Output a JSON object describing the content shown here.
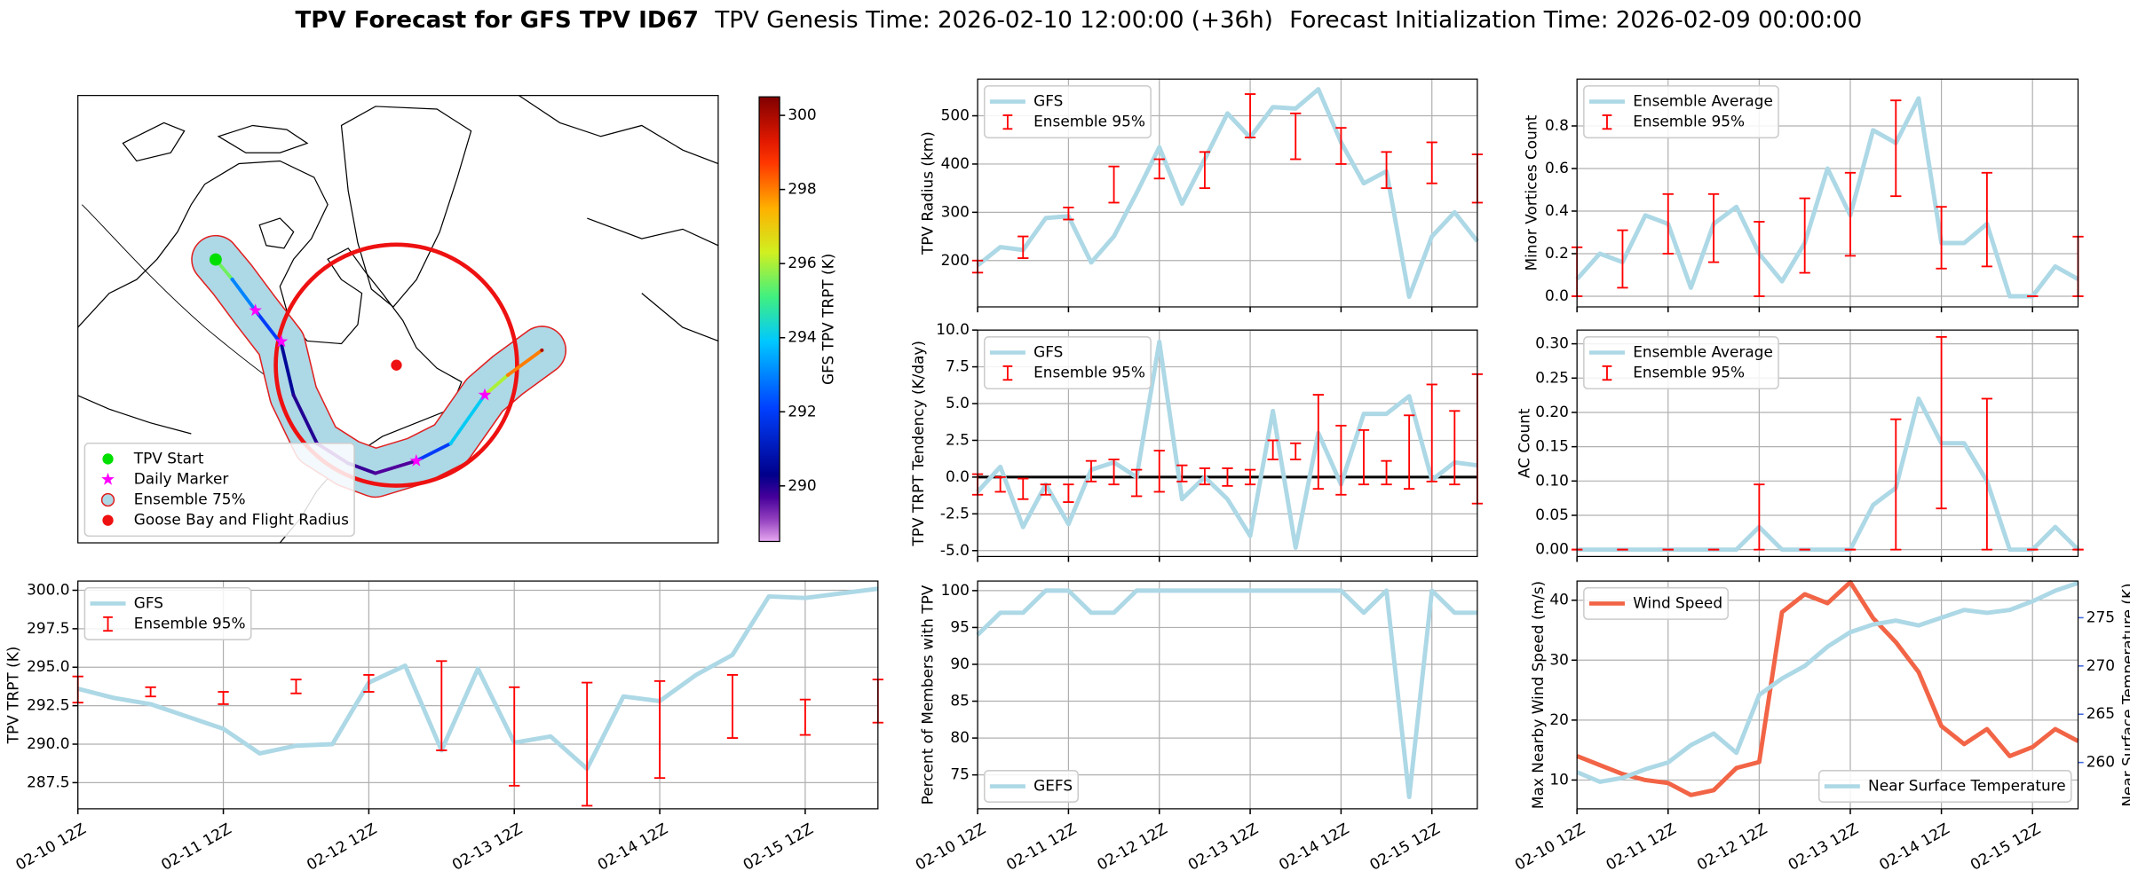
{
  "title": "TPV Forecast for GFS TPV ID67",
  "subtitles": [
    "TPV Genesis Time: 2026-02-10 12:00:00 (+36h)",
    "Forecast Initialization Time: 2026-02-09 00:00:00"
  ],
  "chart_data": [
    {
      "type": "map",
      "lonlim": [
        -139,
        19
      ],
      "latlim": [
        39,
        75
      ],
      "track": {
        "lon": [
          -105.0,
          -100.9,
          -95.2,
          -88.8,
          -85.8,
          -80.0,
          -72.3,
          -65.6,
          -55.5,
          -47.0,
          -38.6,
          -32.9,
          -24.5
        ],
        "lat": [
          61.8,
          60.2,
          57.7,
          55.0,
          50.9,
          47.0,
          45.4,
          44.6,
          45.6,
          47.0,
          50.9,
          52.5,
          54.5
        ],
        "trpt": [
          295.5,
          293,
          292,
          290.5,
          290,
          289.5,
          289.8,
          289.6,
          292,
          294,
          296,
          298,
          300
        ]
      },
      "start": {
        "name": "TPV Start",
        "color": "#00e000"
      },
      "daily_markers": {
        "name": "Daily Marker",
        "color": "#ff00ff",
        "lon": [
          -95.2,
          -88.8,
          -55.5,
          -38.6
        ],
        "lat": [
          57.7,
          55.2,
          45.6,
          50.9
        ]
      },
      "ensemble": {
        "name": "Ensemble 75%",
        "color": "#add8e6",
        "edge": "#e02020"
      },
      "goose_bay": {
        "name": "Goose Bay and Flight Radius",
        "color": "#ee1111",
        "lon": -60.4,
        "lat": 53.3,
        "radius_deg": 9.7
      },
      "legend": "lower left",
      "colorbar": {
        "label": "GFS TPV TRPT (K)",
        "clim": [
          288.5,
          300.5
        ],
        "ticks": [
          290,
          292,
          294,
          296,
          298,
          300
        ]
      }
    },
    {
      "type": "line",
      "ylabel": "TPV TRPT (K)",
      "grid": true,
      "legend": "upper left",
      "categories": [
        "02-10 12Z",
        null,
        null,
        null,
        "02-11 12Z",
        null,
        null,
        null,
        "02-12 12Z",
        null,
        null,
        null,
        "02-13 12Z",
        null,
        null,
        null,
        "02-14 12Z",
        null,
        null,
        null,
        "02-15 12Z",
        null,
        null
      ],
      "ylim": [
        285.8,
        300.6
      ],
      "yticks": [
        287.5,
        {
          "value": 290,
          "label": "290.0"
        },
        292.5,
        {
          "value": 295,
          "label": "295.0"
        },
        297.5,
        {
          "value": 300,
          "label": "300.0"
        }
      ],
      "series": [
        {
          "name": "GFS",
          "color": "#add8e6",
          "values": [
            293.6,
            293.0,
            292.6,
            291.8,
            291.0,
            289.4,
            289.9,
            290.0,
            294.0,
            295.1,
            289.6,
            294.9,
            290.1,
            290.5,
            288.4,
            293.1,
            292.8,
            294.5,
            295.8,
            299.6,
            299.5,
            299.8,
            300.1
          ]
        }
      ],
      "errorbars": {
        "name": "Ensemble 95%",
        "color": "#ff0000",
        "low": [
          292.7,
          null,
          293.1,
          null,
          292.6,
          null,
          293.3,
          null,
          293.4,
          null,
          289.6,
          null,
          287.3,
          null,
          286.0,
          null,
          287.8,
          null,
          290.4,
          null,
          290.6,
          null,
          291.4
        ],
        "high": [
          294.4,
          null,
          293.7,
          null,
          293.4,
          null,
          294.2,
          null,
          294.5,
          null,
          295.4,
          null,
          293.7,
          null,
          294.0,
          null,
          294.1,
          null,
          294.5,
          null,
          292.9,
          null,
          294.2
        ]
      }
    },
    {
      "type": "line",
      "ylabel": "TPV Radius (km)",
      "grid": true,
      "legend": "upper left",
      "sharex": 4,
      "ylim": [
        104,
        576
      ],
      "yticks": [
        200,
        300,
        400,
        500
      ],
      "series": [
        {
          "name": "GFS",
          "color": "#add8e6",
          "values": [
            190,
            228,
            222,
            288,
            292,
            196,
            250,
            340,
            435,
            318,
            410,
            505,
            455,
            518,
            515,
            555,
            445,
            360,
            385,
            125,
            250,
            300,
            240
          ]
        }
      ],
      "errorbars": {
        "name": "Ensemble 95%",
        "color": "#ff0000",
        "low": [
          175,
          null,
          205,
          null,
          285,
          null,
          320,
          null,
          370,
          null,
          350,
          null,
          455,
          null,
          410,
          null,
          400,
          null,
          350,
          null,
          360,
          null,
          320
        ],
        "high": [
          200,
          null,
          250,
          null,
          310,
          null,
          395,
          null,
          410,
          null,
          425,
          null,
          545,
          null,
          505,
          null,
          475,
          null,
          425,
          null,
          445,
          null,
          420
        ]
      }
    },
    {
      "type": "line",
      "ylabel": "TPV TRPT Tendency (K/day)",
      "grid": true,
      "legend": "upper left",
      "sharex": 4,
      "hline": 0,
      "ylim": [
        -5.4,
        10.0
      ],
      "yticks": [
        {
          "value": -5,
          "label": "-5.0"
        },
        -2.5,
        {
          "value": 0,
          "label": "0.0"
        },
        2.5,
        {
          "value": 5,
          "label": "5.0"
        },
        7.5,
        {
          "value": 10,
          "label": "10.0"
        }
      ],
      "series": [
        {
          "name": "GFS",
          "color": "#add8e6",
          "values": [
            -1.0,
            0.7,
            -3.4,
            -0.5,
            -3.2,
            0.5,
            1.0,
            0.0,
            9.2,
            -1.5,
            0.0,
            -1.5,
            -4.0,
            4.5,
            -4.8,
            3.0,
            -0.5,
            4.3,
            4.3,
            5.5,
            -0.2,
            1.0,
            0.8
          ]
        }
      ],
      "errorbars": {
        "name": "Ensemble 95%",
        "color": "#ff0000",
        "low": [
          -1.2,
          -1.0,
          -1.5,
          -1.2,
          -1.7,
          -0.3,
          -0.5,
          -1.3,
          -1.0,
          -0.3,
          -0.5,
          -0.6,
          -0.5,
          1.2,
          1.2,
          -0.8,
          -1.2,
          -0.5,
          -0.5,
          -0.8,
          -0.3,
          -0.5,
          -1.8
        ],
        "high": [
          0.2,
          0.0,
          -0.1,
          -0.5,
          -0.5,
          1.1,
          1.2,
          0.5,
          1.8,
          0.8,
          0.6,
          0.6,
          0.5,
          2.5,
          2.3,
          5.6,
          3.5,
          3.2,
          1.1,
          4.2,
          6.3,
          4.5,
          7.0
        ]
      }
    },
    {
      "type": "line",
      "ylabel": "Percent of Members with TPV",
      "grid": true,
      "legend": "lower left",
      "categories": [
        "02-10 12Z",
        null,
        null,
        null,
        "02-11 12Z",
        null,
        null,
        null,
        "02-12 12Z",
        null,
        null,
        null,
        "02-13 12Z",
        null,
        null,
        null,
        "02-14 12Z",
        null,
        null,
        null,
        "02-15 12Z",
        null,
        null
      ],
      "ylim": [
        70.4,
        101.3
      ],
      "yticks": [
        75,
        80,
        85,
        90,
        95,
        100
      ],
      "series": [
        {
          "name": "GEFS",
          "color": "#add8e6",
          "values": [
            94,
            97,
            97,
            100,
            100,
            97,
            97,
            100,
            100,
            100,
            100,
            100,
            100,
            100,
            100,
            100,
            100,
            97,
            100,
            72,
            100,
            97,
            97
          ]
        }
      ]
    },
    {
      "type": "line",
      "ylabel": "Minor Vortices Count",
      "grid": true,
      "legend": "upper left",
      "sharex": 7,
      "ylim": [
        -0.05,
        1.02
      ],
      "yticks": [
        {
          "value": 0,
          "label": "0.0"
        },
        0.2,
        0.4,
        0.6,
        0.8
      ],
      "series": [
        {
          "name": "Ensemble Average",
          "color": "#add8e6",
          "values": [
            0.08,
            0.2,
            0.16,
            0.38,
            0.34,
            0.04,
            0.34,
            0.42,
            0.2,
            0.07,
            0.25,
            0.6,
            0.38,
            0.78,
            0.72,
            0.93,
            0.25,
            0.25,
            0.34,
            0.0,
            0.0,
            0.14,
            0.08
          ]
        }
      ],
      "errorbars": {
        "name": "Ensemble 95%",
        "color": "#ff0000",
        "low": [
          0.0,
          null,
          0.04,
          null,
          0.2,
          null,
          0.16,
          null,
          0.0,
          null,
          0.11,
          null,
          0.19,
          null,
          0.47,
          null,
          0.13,
          null,
          0.14,
          null,
          0.0,
          null,
          0.0
        ],
        "high": [
          0.23,
          null,
          0.31,
          null,
          0.48,
          null,
          0.48,
          null,
          0.35,
          null,
          0.46,
          null,
          0.58,
          null,
          0.92,
          null,
          0.42,
          null,
          0.58,
          null,
          0.0,
          null,
          0.28
        ]
      }
    },
    {
      "type": "line",
      "ylabel": "AC Count",
      "grid": true,
      "legend": "upper left",
      "sharex": 7,
      "ylim": [
        -0.01,
        0.32
      ],
      "yticks": [
        {
          "value": 0,
          "label": "0.00"
        },
        0.05,
        {
          "value": 0.1,
          "label": "0.10"
        },
        0.15,
        {
          "value": 0.2,
          "label": "0.20"
        },
        0.25,
        {
          "value": 0.3,
          "label": "0.30"
        }
      ],
      "series": [
        {
          "name": "Ensemble Average",
          "color": "#add8e6",
          "values": [
            0,
            0,
            0,
            0,
            0,
            0,
            0,
            0,
            0.033,
            0,
            0,
            0,
            0,
            0.065,
            0.09,
            0.22,
            0.155,
            0.155,
            0.1,
            0,
            0,
            0.033,
            0
          ]
        }
      ],
      "errorbars": {
        "name": "Ensemble 95%",
        "color": "#ff0000",
        "low": [
          0,
          null,
          0,
          null,
          0,
          null,
          0,
          null,
          0,
          null,
          0,
          null,
          0,
          null,
          0,
          null,
          0.06,
          null,
          0,
          null,
          0,
          null,
          0
        ],
        "high": [
          0,
          null,
          0,
          null,
          0,
          null,
          0,
          null,
          0.095,
          null,
          0,
          null,
          0,
          null,
          0.19,
          null,
          0.31,
          null,
          0.22,
          null,
          0,
          null,
          0
        ]
      }
    },
    {
      "type": "line",
      "ylabel": "Max Nearby Wind Speed (m/s)",
      "y2label": "Near Surface Temperature (K)",
      "ycolor": "#f26446",
      "y2color": "#4169e1",
      "grid": true,
      "legend": "upper left",
      "categories": [
        "02-10 12Z",
        null,
        null,
        null,
        "02-11 12Z",
        null,
        null,
        null,
        "02-12 12Z",
        null,
        null,
        null,
        "02-13 12Z",
        null,
        null,
        null,
        "02-14 12Z",
        null,
        null,
        null,
        "02-15 12Z",
        null,
        null
      ],
      "ylim": [
        5.2,
        43.2
      ],
      "yticks": [
        10,
        20,
        30,
        40
      ],
      "y2lim": [
        255.2,
        278.8
      ],
      "y2ticks": [
        260,
        265,
        270,
        275
      ],
      "series": [
        {
          "name": "Wind Speed",
          "color": "#f26446",
          "values": [
            14,
            12.5,
            11,
            10,
            9.5,
            7.5,
            8.3,
            12,
            13,
            38,
            41,
            39.5,
            43,
            37,
            33,
            28,
            19,
            16,
            18.5,
            14,
            15.5,
            18.5,
            16.5
          ]
        },
        {
          "name": "Near Surface Temperature",
          "color": "#add8e6",
          "axis": "y2",
          "legend": "lower right",
          "values": [
            259,
            258,
            258.4,
            259.3,
            260,
            261.8,
            263,
            261,
            267,
            268.7,
            270,
            272,
            273.5,
            274.3,
            274.7,
            274.2,
            275,
            275.8,
            275.5,
            275.8,
            276.7,
            277.8,
            278.6
          ]
        }
      ]
    }
  ]
}
